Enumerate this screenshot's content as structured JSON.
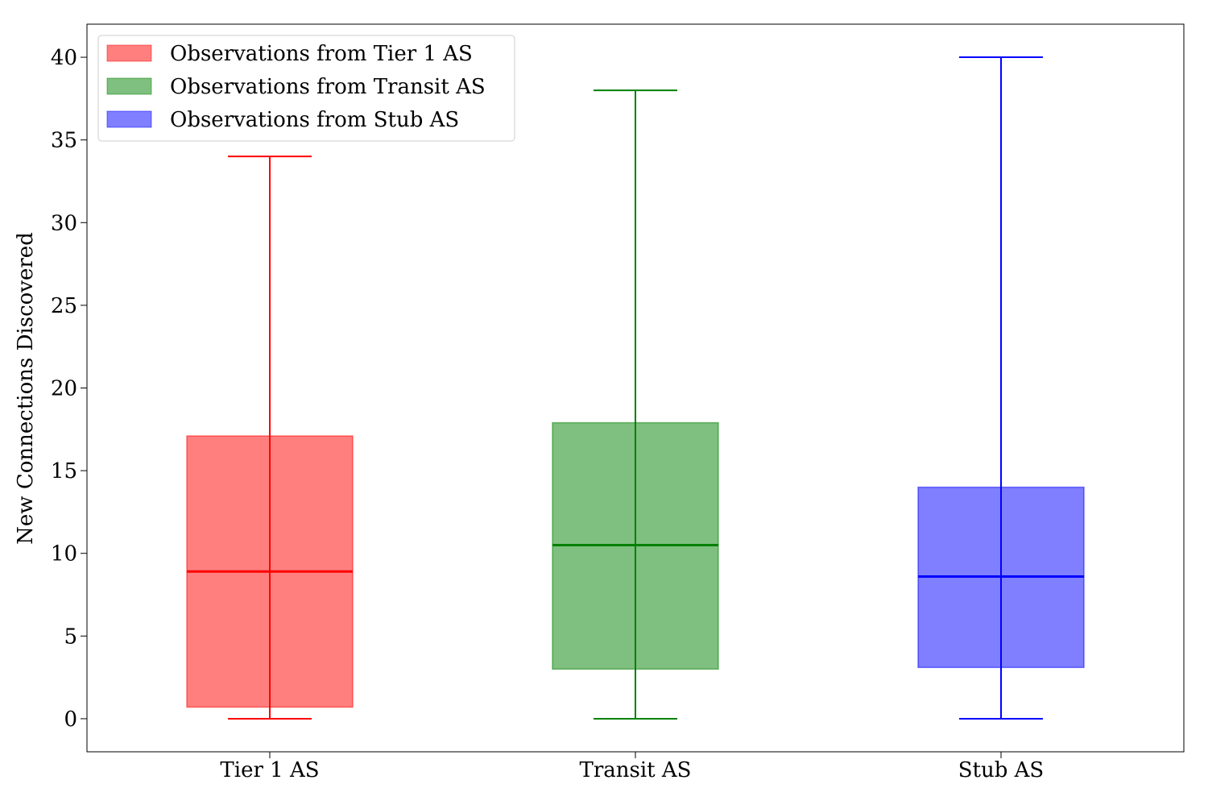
{
  "chart_data": {
    "type": "box",
    "title": "",
    "xlabel": "",
    "ylabel": "New Connections Discovered",
    "ylim": [
      -2,
      42
    ],
    "yticks": [
      0,
      5,
      10,
      15,
      20,
      25,
      30,
      35,
      40
    ],
    "grid": false,
    "legend_position": "top-left",
    "categories": [
      "Tier 1 AS",
      "Transit AS",
      "Stub AS"
    ],
    "series": [
      {
        "name": "Observations from Tier 1 AS",
        "category": "Tier 1 AS",
        "color": "#ff0000",
        "whisker_low": 0,
        "q1": 0.7,
        "median": 8.9,
        "q3": 17.1,
        "whisker_high": 34
      },
      {
        "name": "Observations from Transit AS",
        "category": "Transit AS",
        "color": "#008000",
        "whisker_low": 0,
        "q1": 3.0,
        "median": 10.5,
        "q3": 17.9,
        "whisker_high": 38
      },
      {
        "name": "Observations from Stub AS",
        "category": "Stub AS",
        "color": "#0000ff",
        "whisker_low": 0,
        "q1": 3.1,
        "median": 8.6,
        "q3": 14.0,
        "whisker_high": 40
      }
    ]
  }
}
